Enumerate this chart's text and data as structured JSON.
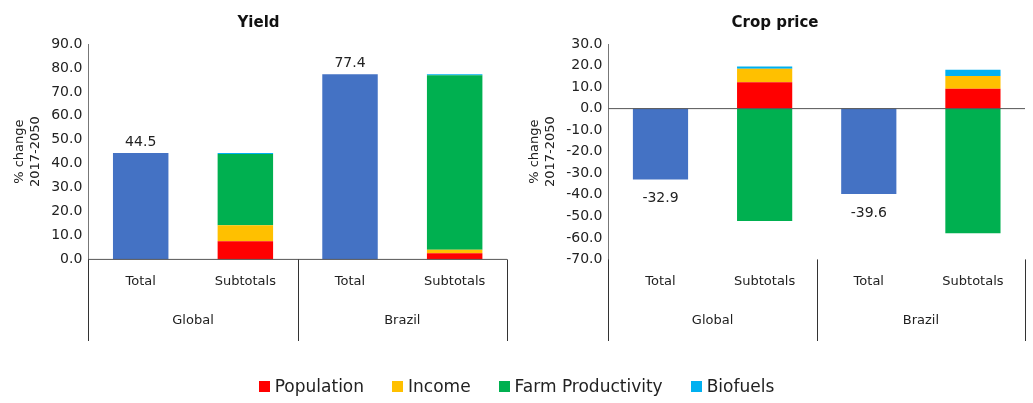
{
  "chart_data": [
    {
      "type": "bar",
      "title": "Yield",
      "ylabel": "% change 2017-2050",
      "categories": [
        "Total",
        "Subtotals",
        "Total",
        "Subtotals"
      ],
      "annotations": [
        "Global",
        "Brazil"
      ],
      "stacked": true,
      "legend": "bottom",
      "ylim": [
        0,
        90
      ],
      "yticks": [
        {
          "value": 0,
          "label": "0.0"
        },
        {
          "value": 10,
          "label": "10.0"
        },
        {
          "value": 20,
          "label": "20.0"
        },
        {
          "value": 30,
          "label": "30.0"
        },
        {
          "value": 40,
          "label": "40.0"
        },
        {
          "value": 50,
          "label": "50.0"
        },
        {
          "value": 60,
          "label": "60.0"
        },
        {
          "value": 70,
          "label": "70.0"
        },
        {
          "value": 80,
          "label": "80.0"
        },
        {
          "value": 90,
          "label": "90.0"
        }
      ],
      "series": [
        {
          "color": "#4472c4",
          "values": [
            44.5,
            null,
            77.4,
            null
          ],
          "value_labels": [
            "44.5",
            null,
            "77.4",
            null
          ]
        },
        {
          "name": "Population",
          "color": "#ff0000",
          "values": [
            null,
            7.6,
            null,
            2.6
          ]
        },
        {
          "name": "Income",
          "color": "#ffc000",
          "values": [
            null,
            6.7,
            null,
            1.4
          ]
        },
        {
          "name": "Farm Productivity",
          "color": "#00b050",
          "values": [
            null,
            29.7,
            null,
            72.9
          ]
        },
        {
          "name": "Biofuels",
          "color": "#00b0f0",
          "values": [
            null,
            0.5,
            null,
            0.5
          ]
        }
      ]
    },
    {
      "type": "bar",
      "title": "Crop price",
      "ylabel": "% change 2017-2050",
      "categories": [
        "Total",
        "Subtotals",
        "Total",
        "Subtotals"
      ],
      "annotations": [
        "Global",
        "Brazil"
      ],
      "stacked": true,
      "ylim": [
        -70,
        30
      ],
      "yticks": [
        {
          "value": -70,
          "label": "-70.0"
        },
        {
          "value": -60,
          "label": "-60.0"
        },
        {
          "value": -50,
          "label": "-50.0"
        },
        {
          "value": -40,
          "label": "-40.0"
        },
        {
          "value": -30,
          "label": "-30.0"
        },
        {
          "value": -20,
          "label": "-20.0"
        },
        {
          "value": -10,
          "label": "-10.0"
        },
        {
          "value": 0,
          "label": "0.0"
        },
        {
          "value": 10,
          "label": "10.0"
        },
        {
          "value": 20,
          "label": "20.0"
        },
        {
          "value": 30,
          "label": "30.0"
        }
      ],
      "series": [
        {
          "color": "#4472c4",
          "values": [
            -32.9,
            null,
            -39.6,
            null
          ],
          "value_labels": [
            "-32.9",
            null,
            "-39.6",
            null
          ]
        },
        {
          "color": "#ff0000",
          "values": [
            null,
            12.3,
            null,
            9.2
          ]
        },
        {
          "color": "#ffc000",
          "values": [
            null,
            6.2,
            null,
            5.9
          ]
        },
        {
          "color": "#00b050",
          "values": [
            null,
            -52.2,
            null,
            -57.9
          ]
        },
        {
          "color": "#00b0f0",
          "values": [
            null,
            1.0,
            null,
            3.0
          ]
        }
      ]
    }
  ]
}
